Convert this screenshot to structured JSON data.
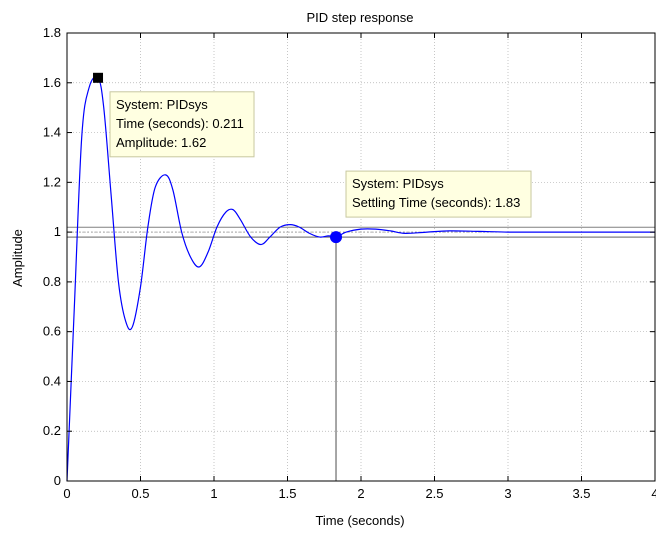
{
  "chart_data": {
    "type": "line",
    "title": "PID step response",
    "xlabel": "Time (seconds)",
    "ylabel": "Amplitude",
    "xlim": [
      0,
      4
    ],
    "ylim": [
      0,
      1.8
    ],
    "grid": true,
    "xticks": [
      0,
      0.5,
      1,
      1.5,
      2,
      2.5,
      3,
      3.5,
      4
    ],
    "xtick_labels": [
      "0",
      "0.5",
      "1",
      "1.5",
      "2",
      "2.5",
      "3",
      "3.5",
      "4"
    ],
    "yticks": [
      0,
      0.2,
      0.4,
      0.6,
      0.8,
      1,
      1.2,
      1.4,
      1.6,
      1.8
    ],
    "ytick_labels": [
      "0",
      "0.2",
      "0.4",
      "0.6",
      "0.8",
      "1",
      "1.2",
      "1.4",
      "1.6",
      "1.8"
    ],
    "series": [
      {
        "x": [
          0,
          0.05,
          0.1,
          0.15,
          0.211,
          0.25,
          0.3,
          0.35,
          0.4,
          0.445,
          0.5,
          0.55,
          0.6,
          0.67,
          0.72,
          0.78,
          0.84,
          0.9,
          0.96,
          1.02,
          1.08,
          1.13,
          1.18,
          1.25,
          1.32,
          1.38,
          1.45,
          1.52,
          1.58,
          1.65,
          1.72,
          1.78,
          1.83,
          1.9,
          2.0,
          2.1,
          2.2,
          2.3,
          2.45,
          2.6,
          2.8,
          3.0,
          3.2,
          3.5,
          4.0
        ],
        "y": [
          0,
          0.7,
          1.38,
          1.58,
          1.62,
          1.5,
          1.15,
          0.8,
          0.64,
          0.62,
          0.78,
          1.02,
          1.18,
          1.23,
          1.17,
          1.0,
          0.9,
          0.86,
          0.92,
          1.02,
          1.08,
          1.09,
          1.05,
          0.98,
          0.95,
          0.98,
          1.02,
          1.03,
          1.02,
          0.995,
          0.98,
          0.985,
          0.98,
          1.0,
          1.012,
          1.012,
          1.005,
          0.995,
          1.0,
          1.005,
          1.003,
          1.0,
          1.0,
          1.0,
          1.0
        ],
        "color": "#0000ff"
      }
    ],
    "settling_band": [
      0.98,
      1.02
    ],
    "annotations": [
      {
        "id": "peak",
        "x": 0.211,
        "y": 1.62,
        "marker": "square",
        "marker_color": "#000000",
        "lines": [
          "System: PIDsys",
          "Time (seconds): 0.211",
          "Amplitude: 1.62"
        ]
      },
      {
        "id": "settling",
        "x": 1.83,
        "y": 0.98,
        "marker": "circle",
        "marker_color": "#0000ff",
        "lines": [
          "System: PIDsys",
          "Settling Time (seconds): 1.83"
        ]
      }
    ],
    "datatip_bg": "#ffffe1",
    "datatip_border": "#c8c8a0"
  }
}
